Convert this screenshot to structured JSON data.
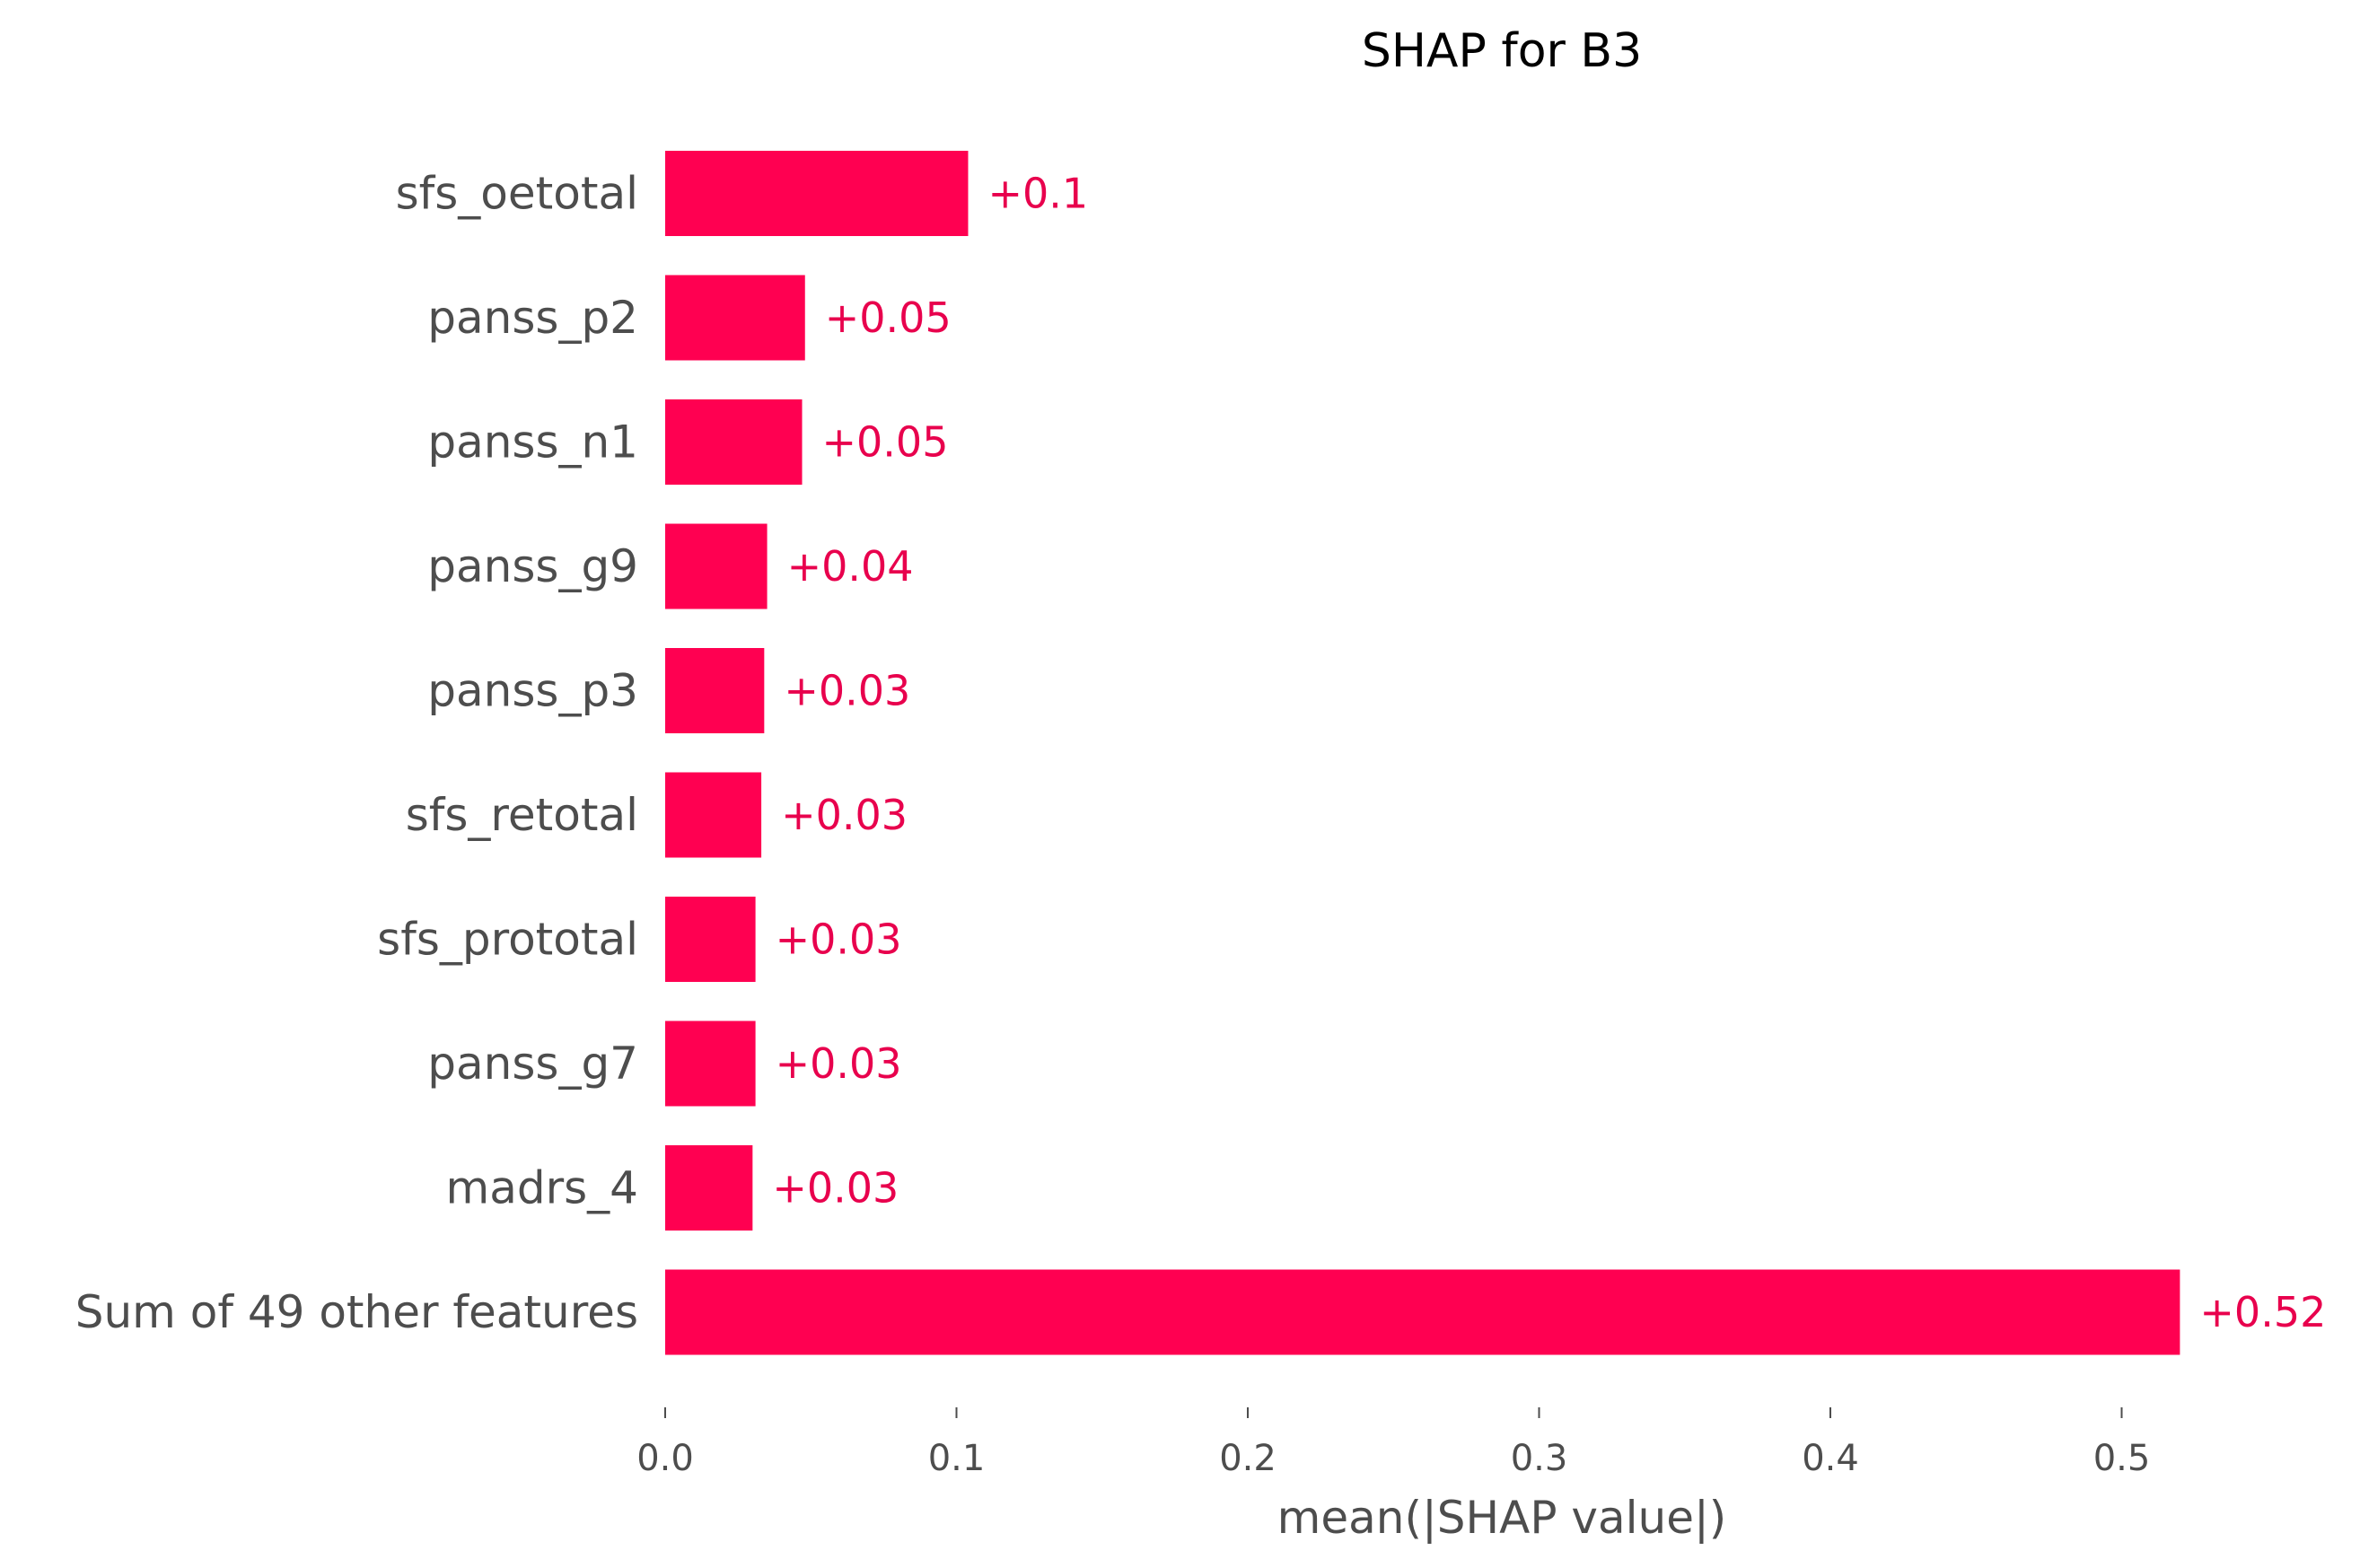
{
  "chart_data": {
    "type": "bar",
    "orientation": "horizontal",
    "title": "SHAP for B3",
    "xlabel": "mean(|SHAP value|)",
    "ylabel": "",
    "xlim": [
      0,
      0.55
    ],
    "xticks": [
      0.0,
      0.1,
      0.2,
      0.3,
      0.4,
      0.5
    ],
    "xtick_labels": [
      "0.0",
      "0.1",
      "0.2",
      "0.3",
      "0.4",
      "0.5"
    ],
    "grid": false,
    "categories": [
      "sfs_oetotal",
      "panss_p2",
      "panss_n1",
      "panss_g9",
      "panss_p3",
      "sfs_retotal",
      "sfs_prototal",
      "panss_g7",
      "madrs_4",
      "Sum of 49 other features"
    ],
    "values": [
      0.104,
      0.048,
      0.047,
      0.035,
      0.034,
      0.033,
      0.031,
      0.031,
      0.03,
      0.52
    ],
    "value_labels": [
      "+0.1",
      "+0.05",
      "+0.05",
      "+0.04",
      "+0.03",
      "+0.03",
      "+0.03",
      "+0.03",
      "+0.03",
      "+0.52"
    ],
    "colors": {
      "bar": "#ff0051",
      "value_label": "#e8004d",
      "text": "#4d4d4d",
      "title": "#000000"
    }
  }
}
